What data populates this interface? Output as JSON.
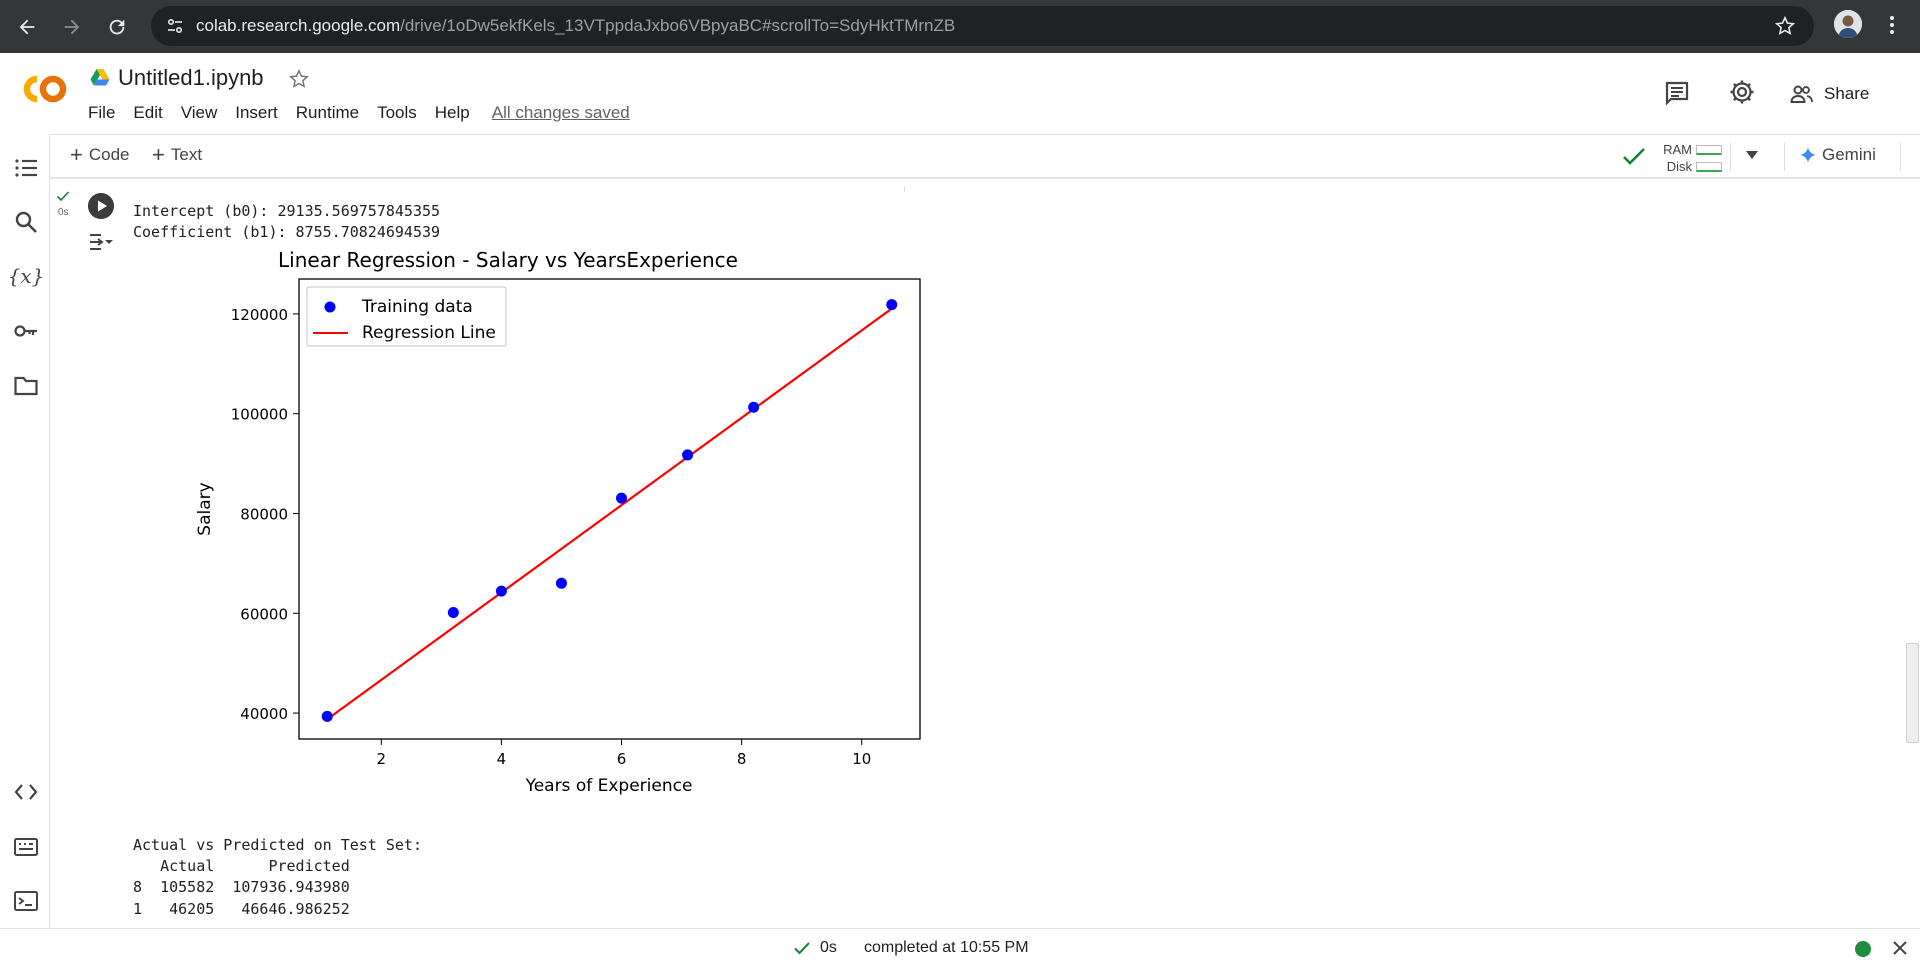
{
  "browser": {
    "url_host": "colab.research.google.com",
    "url_path": "/drive/1oDw5ekfKels_13VTppdaJxbo6VBpyaBC#scrollTo=SdyHktTMrnZB"
  },
  "header": {
    "notebook_title": "Untitled1.ipynb",
    "menu": [
      "File",
      "Edit",
      "View",
      "Insert",
      "Runtime",
      "Tools",
      "Help"
    ],
    "save_status": "All changes saved",
    "share_label": "Share"
  },
  "toolbar": {
    "add_code_label": "Code",
    "add_text_label": "Text",
    "ram_label": "RAM",
    "disk_label": "Disk",
    "gemini_label": "Gemini"
  },
  "cell": {
    "exec_time": "0s",
    "output": {
      "intercept_line": "Intercept (b0): 29135.569757845355",
      "coef_line": "Coefficient (b1): 8755.70824694539",
      "test_heading": "Actual vs Predicted on Test Set:",
      "test_header": "   Actual      Predicted",
      "test_rows": [
        "8  105582  107936.943980",
        "1   46205   46646.986252"
      ]
    }
  },
  "chart_data": {
    "type": "scatter",
    "title": "Linear Regression - Salary vs YearsExperience",
    "xlabel": "Years of Experience",
    "ylabel": "Salary",
    "xlim": [
      0.63,
      10.97
    ],
    "ylim": [
      34800,
      127000
    ],
    "xticks": [
      2,
      4,
      6,
      8,
      10
    ],
    "yticks": [
      40000,
      60000,
      80000,
      100000,
      120000
    ],
    "grid": false,
    "legend_position": "upper-left",
    "series": [
      {
        "name": "Training data",
        "kind": "points",
        "color": "#0000ff",
        "x": [
          1.1,
          3.2,
          4.0,
          5.0,
          6.0,
          7.1,
          8.2,
          10.5
        ],
        "y": [
          39343,
          60150,
          64445,
          66029,
          83088,
          91738,
          101302,
          121872
        ]
      },
      {
        "name": "Regression Line",
        "kind": "line",
        "color": "#ff0000",
        "x": [
          1.1,
          10.5
        ],
        "y": [
          38767,
          121071
        ]
      }
    ]
  },
  "statusbar": {
    "duration": "0s",
    "completed_text": "completed at 10:55 PM"
  }
}
